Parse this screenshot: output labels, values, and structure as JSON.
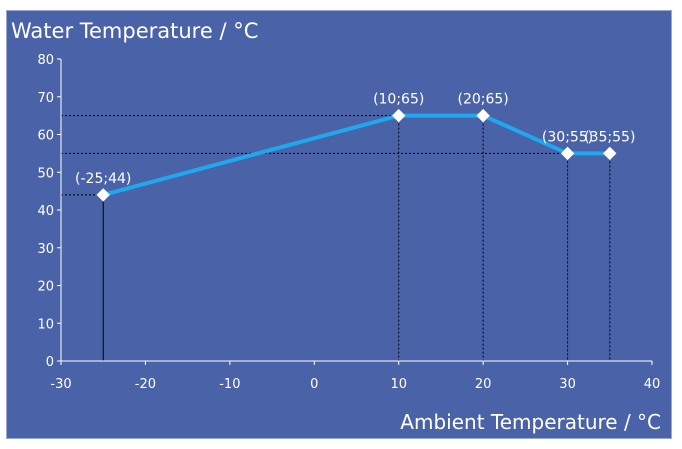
{
  "chart_data": {
    "type": "line",
    "title": "Water Temperature / °C",
    "xlabel": "Ambient Temperature / °C",
    "ylabel": "",
    "xlim": [
      -30,
      40
    ],
    "ylim": [
      0,
      80
    ],
    "xticks": [
      -30,
      -20,
      -10,
      0,
      10,
      20,
      30,
      40
    ],
    "yticks": [
      0,
      10,
      20,
      30,
      40,
      50,
      60,
      70,
      80
    ],
    "grid": false,
    "series": [
      {
        "points": [
          {
            "x": -25,
            "y": 44,
            "label": "(-25;44)"
          },
          {
            "x": 10,
            "y": 65,
            "label": "(10;65)"
          },
          {
            "x": 20,
            "y": 65,
            "label": "(20;65)"
          },
          {
            "x": 30,
            "y": 55,
            "label": "(30;55)"
          },
          {
            "x": 35,
            "y": 55,
            "label": "(35;55)"
          }
        ]
      }
    ]
  },
  "colors": {
    "background": "#4a63a8",
    "line": "#1fa8ee",
    "marker": "#ffffff",
    "text": "#ffffff",
    "axis": "#ffffff",
    "guide": "#000000"
  }
}
